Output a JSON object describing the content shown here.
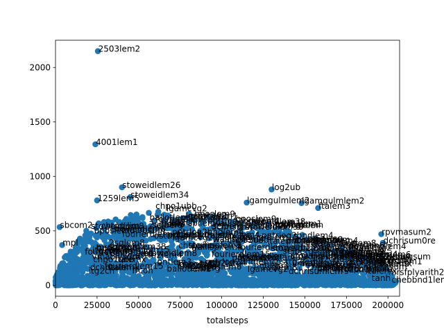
{
  "chart_data": {
    "type": "scatter",
    "xlabel": "totalsteps",
    "ylabel": "",
    "xlim": [
      0,
      207000
    ],
    "ylim": [
      -100,
      2250
    ],
    "x_ticks": [
      0,
      25000,
      50000,
      75000,
      100000,
      125000,
      150000,
      175000,
      200000
    ],
    "y_ticks": [
      0,
      500,
      1000,
      1500,
      2000
    ],
    "x_tick_labels": [
      "0",
      "25000",
      "50000",
      "75000",
      "100000",
      "125000",
      "150000",
      "175000",
      "200000"
    ],
    "y_tick_labels": [
      "0",
      "500",
      "1000",
      "1500",
      "2000"
    ],
    "grid": false,
    "marker_color": "#1f77b4",
    "labeled_points": [
      {
        "label": "2503lem2",
        "x": 25500,
        "y": 2150
      },
      {
        "label": "4001lem1",
        "x": 24000,
        "y": 1295
      },
      {
        "label": "stoweidlem26",
        "x": 40000,
        "y": 900
      },
      {
        "label": "log2ub",
        "x": 130000,
        "y": 880
      },
      {
        "label": "1259lem5",
        "x": 25000,
        "y": 780
      },
      {
        "label": "stoweidlem34",
        "x": 45000,
        "y": 810
      },
      {
        "label": "lgamgulmlem2",
        "x": 115000,
        "y": 760
      },
      {
        "label": "lgamgulmlem2",
        "x": 148000,
        "y": 755
      },
      {
        "label": "ftalem3",
        "x": 158000,
        "y": 710
      },
      {
        "label": "dchrisum0re",
        "x": 197000,
        "y": 390
      },
      {
        "label": "rpvmasum2",
        "x": 196000,
        "y": 470
      },
      {
        "label": "sbcom2",
        "x": 2500,
        "y": 535
      },
      {
        "label": "mpl",
        "x": 4000,
        "y": 370
      },
      {
        "label": "dchrisumlem",
        "x": 140000,
        "y": 110
      },
      {
        "label": "2pmlogsum",
        "x": 196000,
        "y": 245
      },
      {
        "label": "tanh",
        "x": 190000,
        "y": 45
      },
      {
        "label": "mrsfplyarith2",
        "x": 200000,
        "y": 100
      },
      {
        "label": "chebbnd1lem3",
        "x": 202000,
        "y": 30
      }
    ],
    "cluster_labels": [
      "stoweidlem38",
      "stoweidlem8",
      "chpo1ubb",
      "lgamcvg2",
      "ostth2lem4",
      "fourierdlem15",
      "ballotlem1",
      "wallispilem4",
      "ostth1lem1",
      "dchrisum",
      "fourierdlem",
      "pntrlog2bndlem4",
      "ftalemx",
      "bposlem9",
      "2sqlem8",
      "pntlem3",
      "mulogsum",
      "selberg",
      "vmadivsum",
      "chtppilim",
      "frcon",
      "itg2cn",
      "bposlem6"
    ]
  }
}
